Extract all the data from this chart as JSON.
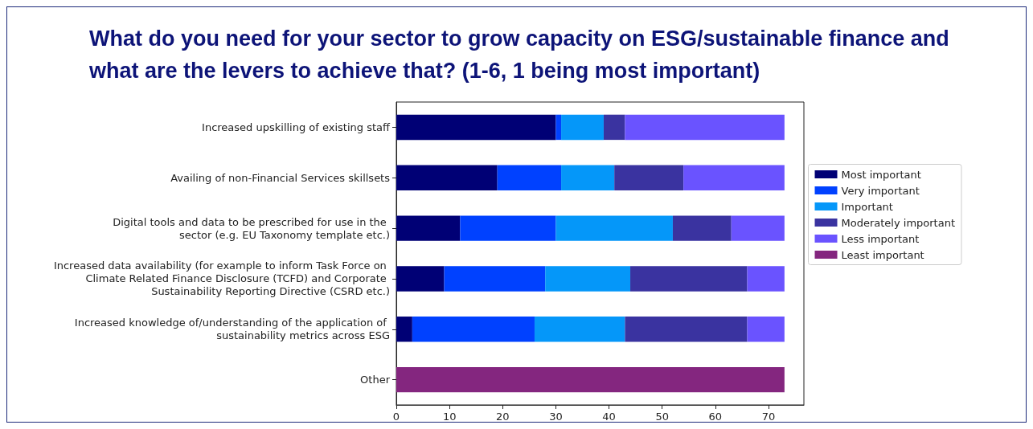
{
  "chart_data": {
    "type": "bar",
    "orientation": "horizontal",
    "stacked": true,
    "title": "What do you need for your sector to grow capacity on ESG/sustainable finance and what are the levers to achieve that? (1-6, 1 being most important)",
    "categories": [
      "Increased upskilling of existing staff",
      "Availing of non-Financial Services skillsets",
      "Digital tools and data to be prescribed for use in the \nsector (e.g. EU Taxonomy template etc.)",
      "Increased data availability (for example to inform Task Force on \nClimate Related Finance Disclosure (TCFD) and Corporate \nSustainability Reporting Directive (CSRD etc.)",
      "Increased knowledge of/understanding of the application of \nsustainability metrics across ESG",
      "Other"
    ],
    "series": [
      {
        "name": "Most important",
        "color": "#000075",
        "values": [
          30,
          19,
          12,
          9,
          3,
          null
        ]
      },
      {
        "name": "Very important",
        "color": "#0041ff",
        "values": [
          1,
          12,
          18,
          19,
          23,
          null
        ]
      },
      {
        "name": "Important",
        "color": "#0597f9",
        "values": [
          8,
          10,
          22,
          16,
          17,
          null
        ]
      },
      {
        "name": "Moderately important",
        "color": "#3a33a0",
        "values": [
          4,
          13,
          11,
          22,
          23,
          null
        ]
      },
      {
        "name": "Less important",
        "color": "#6a53ff",
        "values": [
          30,
          19,
          10,
          7,
          7,
          null
        ]
      },
      {
        "name": "Least important",
        "color": "#84267f",
        "values": [
          null,
          null,
          null,
          null,
          null,
          73
        ]
      }
    ],
    "xlim": [
      0,
      76.65
    ],
    "xticks": [
      0,
      10,
      20,
      30,
      40,
      50,
      60,
      70
    ],
    "grid": false,
    "legend": "right"
  }
}
